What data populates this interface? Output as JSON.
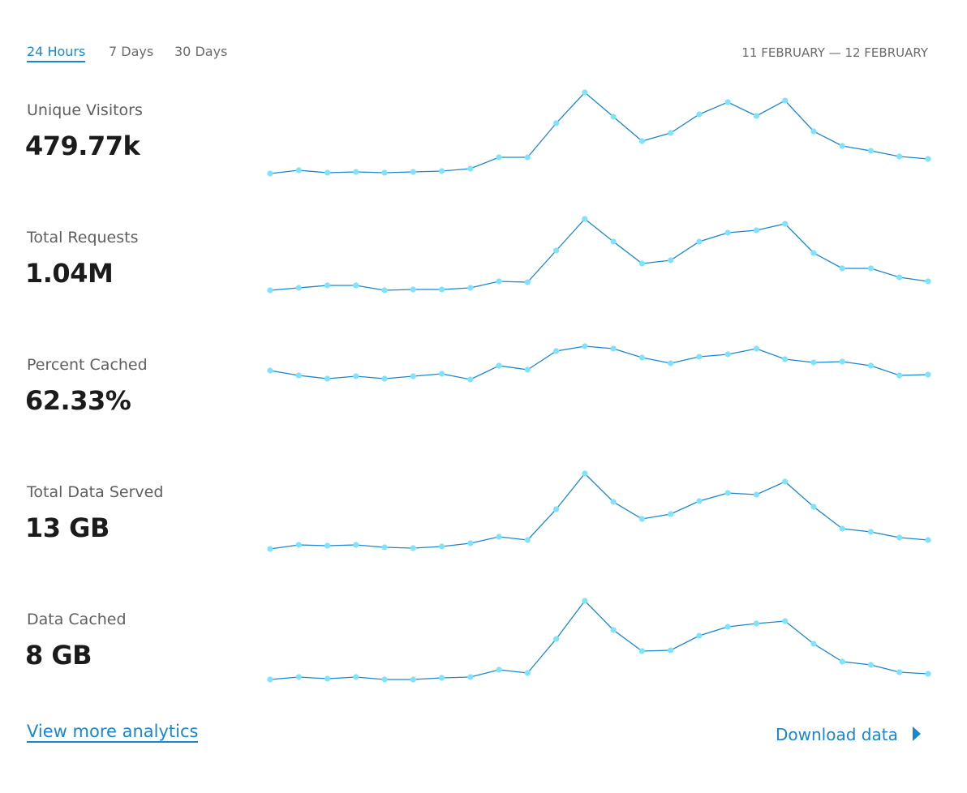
{
  "tabs": [
    "24 Hours",
    "7 Days",
    "30 Days"
  ],
  "date_range": "11 FEBRUARY — 12 FEBRUARY",
  "metrics": [
    {
      "label": "Unique Visitors",
      "value": "479.77k",
      "sparkline": [
        6,
        10,
        7,
        8,
        7,
        8,
        9,
        12,
        26,
        26,
        68,
        106,
        76,
        46,
        56,
        79,
        94,
        77,
        96,
        58,
        40,
        34,
        27,
        24
      ]
    },
    {
      "label": "Total Requests",
      "value": "1.04M",
      "sparkline": [
        19,
        22,
        25,
        25,
        19,
        20,
        20,
        22,
        30,
        29,
        68,
        107,
        79,
        52,
        56,
        79,
        90,
        93,
        101,
        65,
        46,
        46,
        35,
        30
      ]
    },
    {
      "label": "Percent Cached",
      "value": "62.33%",
      "sparkline": [
        77,
        71,
        67,
        70,
        67,
        70,
        73,
        66,
        83,
        78,
        101,
        107,
        104,
        93,
        86,
        94,
        97,
        104,
        91,
        87,
        88,
        83,
        71,
        72
      ]
    },
    {
      "label": "Total Data Served",
      "value": "13 GB",
      "sparkline": [
        14,
        19,
        18,
        19,
        16,
        15,
        17,
        21,
        29,
        25,
        63,
        107,
        72,
        51,
        57,
        73,
        83,
        81,
        97,
        66,
        39,
        35,
        28,
        25
      ]
    },
    {
      "label": "Data Cached",
      "value": "8 GB",
      "sparkline": [
        10,
        13,
        11,
        13,
        10,
        10,
        12,
        13,
        22,
        18,
        60,
        107,
        71,
        45,
        46,
        64,
        75,
        79,
        82,
        54,
        32,
        28,
        19,
        17
      ]
    }
  ],
  "links": {
    "more": "View more analytics",
    "download": "Download data"
  }
}
